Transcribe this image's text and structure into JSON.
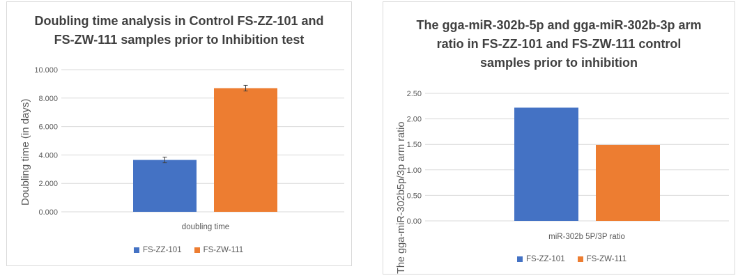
{
  "chart_data": [
    {
      "type": "bar",
      "title": "Doubling time analysis in Control FS-ZZ-101 and FS-ZW-111 samples prior to Inhibition test",
      "title_lines": [
        "Doubling time analysis in Control FS-ZZ-101 and",
        "FS-ZW-111 samples prior to Inhibition test"
      ],
      "ylabel": "Doubling time (in days)",
      "categories": [
        "doubling time"
      ],
      "ylim": [
        0,
        10
      ],
      "yticks": [
        "0.000",
        "2.000",
        "4.000",
        "6.000",
        "8.000",
        "10.000"
      ],
      "grid": true,
      "legend_position": "bottom",
      "series": [
        {
          "name": "FS-ZZ-101",
          "values": [
            3.65
          ],
          "error": [
            0.2
          ],
          "color": "#4472C4"
        },
        {
          "name": "FS-ZW-111",
          "values": [
            8.7
          ],
          "error": [
            0.2
          ],
          "color": "#ED7D31"
        }
      ]
    },
    {
      "type": "bar",
      "title": "The gga-miR-302b-5p and gga-miR-302b-3p arm ratio in FS-ZZ-101 and FS-ZW-111 control samples prior to inhibition",
      "title_lines": [
        "The gga-miR-302b-5p and gga-miR-302b-3p arm",
        "ratio in FS-ZZ-101 and FS-ZW-111 control",
        "samples prior to inhibition"
      ],
      "ylabel": "The gga-miR-302b5p/3p arm ratio",
      "categories": [
        "miR-302b 5P/3P ratio"
      ],
      "ylim": [
        0,
        2.5
      ],
      "yticks": [
        "0.00",
        "0.50",
        "1.00",
        "1.50",
        "2.00",
        "2.50"
      ],
      "grid": true,
      "legend_position": "bottom",
      "series": [
        {
          "name": "FS-ZZ-101",
          "values": [
            2.22
          ],
          "color": "#4472C4"
        },
        {
          "name": "FS-ZW-111",
          "values": [
            1.49
          ],
          "color": "#ED7D31"
        }
      ]
    }
  ]
}
